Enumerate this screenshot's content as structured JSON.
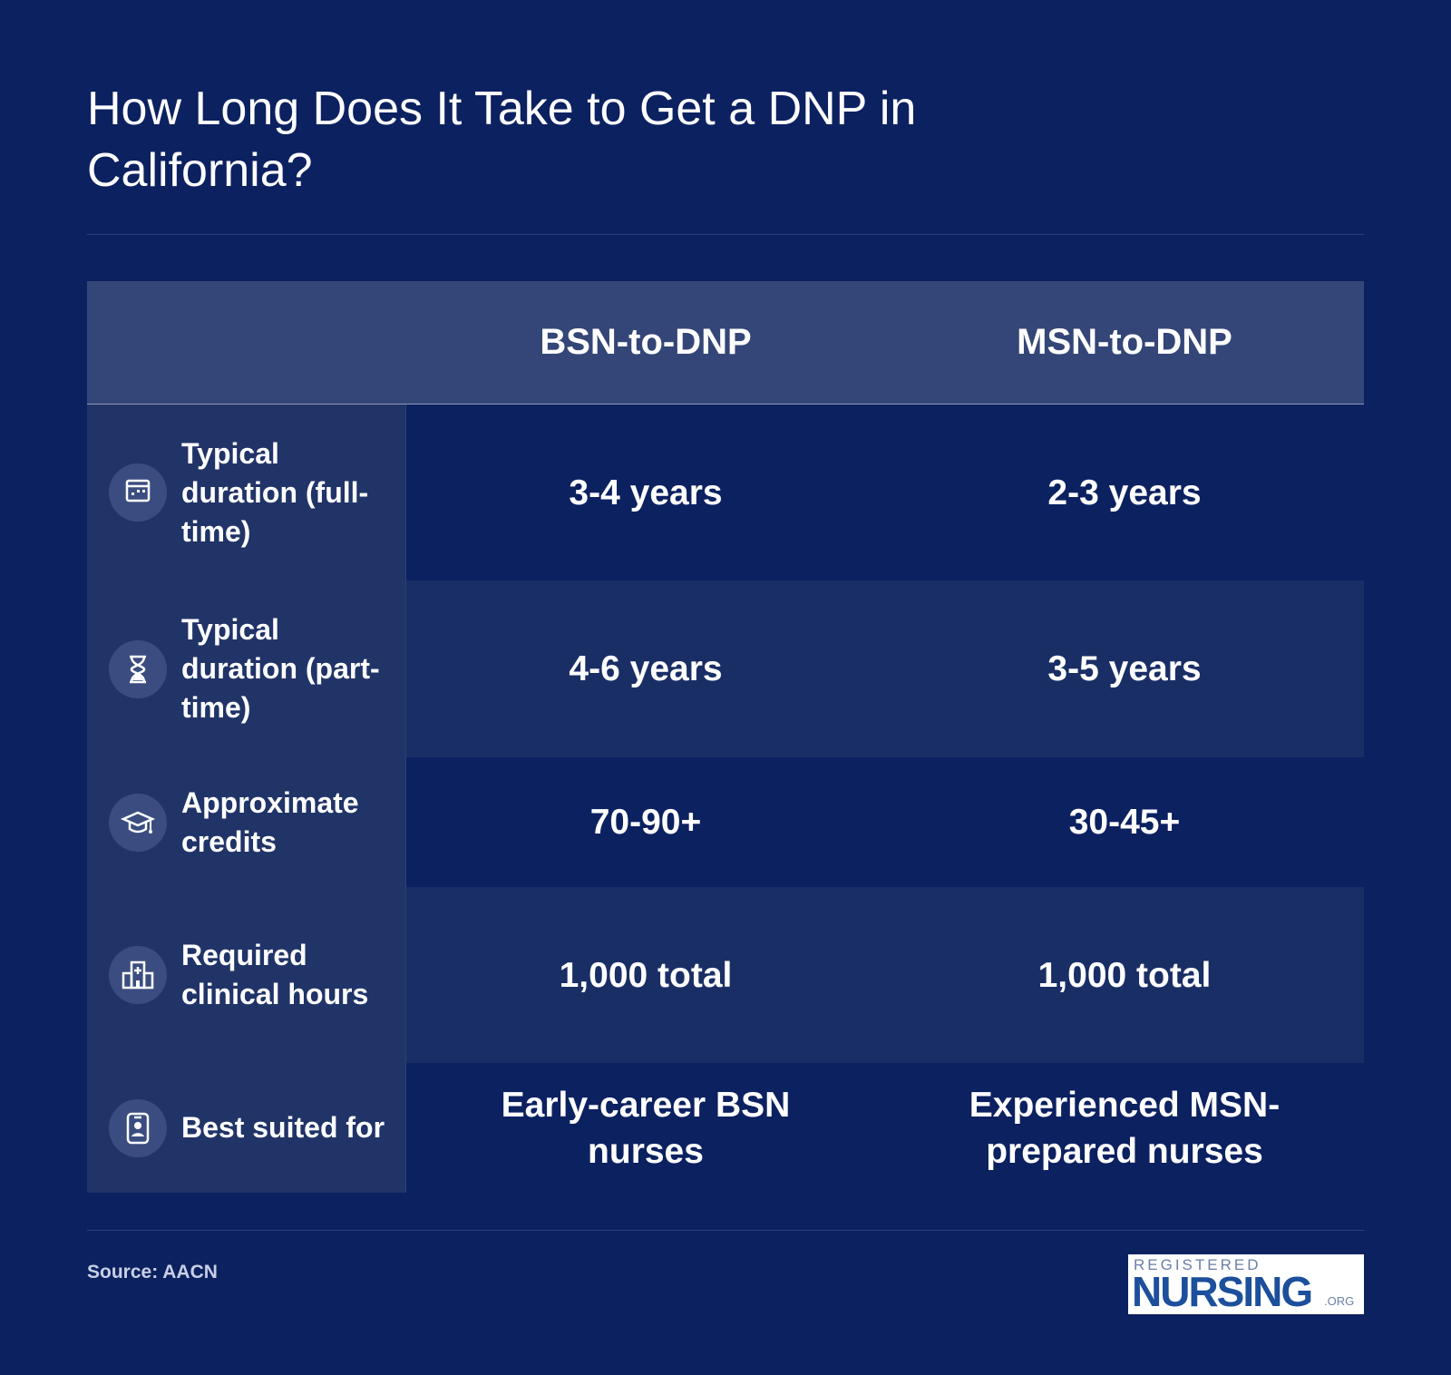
{
  "header": {
    "title": "How Long Does It Take to Get a DNP in California?"
  },
  "table": {
    "columns": [
      "BSN-to-DNP",
      "MSN-to-DNP"
    ],
    "rows": [
      {
        "label": "Typical duration (full-time)",
        "values": [
          "3-4 years",
          "2-3 years"
        ]
      },
      {
        "label": "Typical duration (part-time)",
        "values": [
          "4-6 years",
          "3-5 years"
        ]
      },
      {
        "label": "Approximate credits",
        "values": [
          "70-90+",
          "30-45+"
        ]
      },
      {
        "label": "Required clinical hours",
        "values": [
          "1,000 total",
          "1,000 total"
        ]
      },
      {
        "label": "Best suited for",
        "values": [
          "Early-career BSN nurses",
          "Experienced MSN-prepared nurses"
        ]
      }
    ]
  },
  "footer": {
    "source": "Source: AACN",
    "logo": {
      "top": "REGISTERED",
      "main": "NURSING",
      "suffix": ".ORG"
    }
  }
}
